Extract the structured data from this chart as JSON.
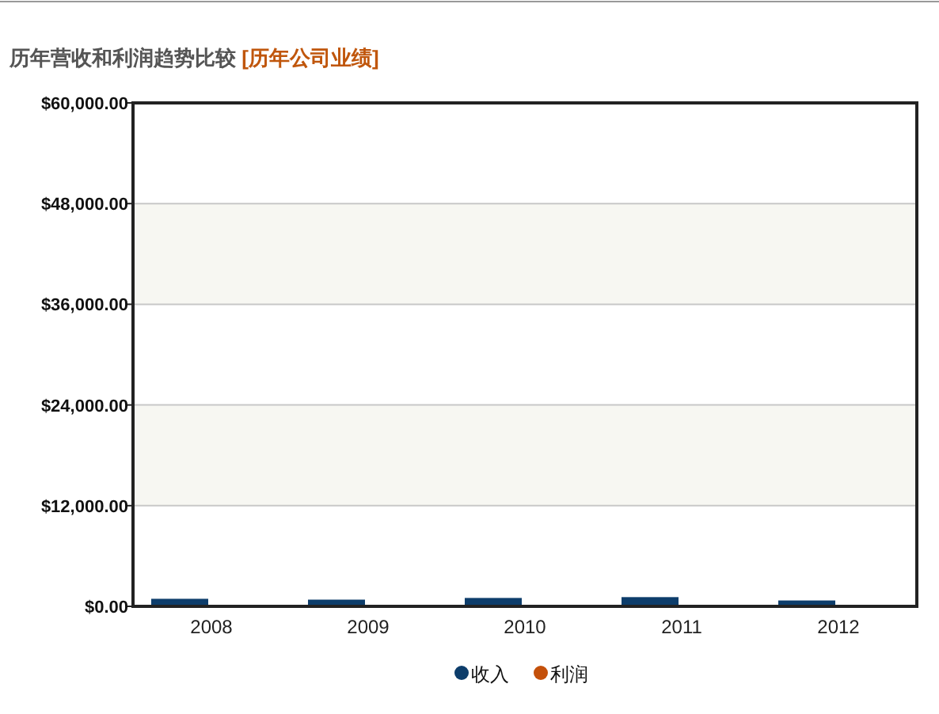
{
  "chart_data": {
    "type": "bar",
    "title": "历年营收和利润趋势比较",
    "subtitle": "[历年公司业绩]",
    "categories": [
      "2008",
      "2009",
      "2010",
      "2011",
      "2012"
    ],
    "series": [
      {
        "name": "收入",
        "color": "#0d3d6b",
        "values": [
          900,
          800,
          1000,
          1100,
          700
        ]
      },
      {
        "name": "利润",
        "color": "#c4500a",
        "values": [
          0,
          0,
          0,
          0,
          0
        ]
      }
    ],
    "ylim": [
      0,
      60000
    ],
    "yticks": [
      {
        "value": 0,
        "label": "$0.00"
      },
      {
        "value": 12000,
        "label": "$12,000.00"
      },
      {
        "value": 24000,
        "label": "$24,000.00"
      },
      {
        "value": 36000,
        "label": "$36,000.00"
      },
      {
        "value": 48000,
        "label": "$48,000.00"
      },
      {
        "value": 60000,
        "label": "$60,000.00"
      }
    ],
    "bands": [
      {
        "axis": "y",
        "from": 12000,
        "to": 24000,
        "color": "#f7f7f2"
      },
      {
        "axis": "y",
        "from": 36000,
        "to": 48000,
        "color": "#f7f7f2"
      }
    ],
    "grid": "y",
    "legend": "bottom"
  }
}
